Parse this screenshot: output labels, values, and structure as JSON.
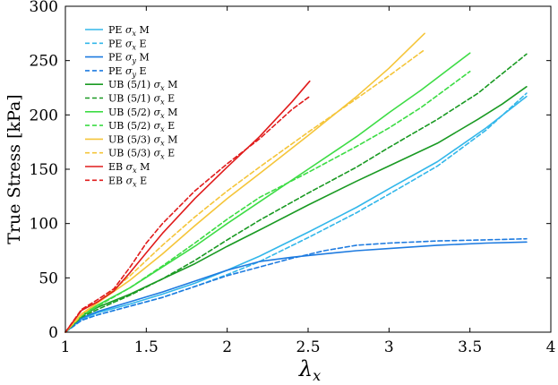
{
  "chart_data": {
    "type": "line",
    "xlabel": "λx",
    "ylabel": "True Stress [kPa]",
    "xlim": [
      1,
      4
    ],
    "ylim": [
      0,
      300
    ],
    "xticks": [
      "1",
      "1.5",
      "2",
      "2.5",
      "3",
      "3.5",
      "4"
    ],
    "yticks": [
      "0",
      "50",
      "100",
      "150",
      "200",
      "250",
      "300"
    ],
    "grid": false,
    "legend": "top-left",
    "series": [
      {
        "name": "PE σx M",
        "color": "#33b7ea",
        "dash": false,
        "x": [
          1,
          1.1,
          1.2,
          1.4,
          1.6,
          1.8,
          2.0,
          2.2,
          2.5,
          2.8,
          3.0,
          3.3,
          3.6,
          3.85
        ],
        "y": [
          0,
          12,
          18,
          26,
          35,
          45,
          57,
          70,
          92,
          115,
          132,
          157,
          188,
          217
        ]
      },
      {
        "name": "PE σx E",
        "color": "#33b7ea",
        "dash": true,
        "x": [
          1,
          1.1,
          1.2,
          1.4,
          1.6,
          1.8,
          2.0,
          2.2,
          2.5,
          2.8,
          3.0,
          3.3,
          3.6,
          3.85
        ],
        "y": [
          0,
          11,
          16,
          24,
          32,
          42,
          53,
          65,
          87,
          110,
          127,
          153,
          186,
          220
        ]
      },
      {
        "name": "PE σy M",
        "color": "#1e7be0",
        "dash": false,
        "x": [
          1,
          1.1,
          1.2,
          1.4,
          1.6,
          1.8,
          2.0,
          2.2,
          2.4,
          2.6,
          2.8,
          3.0,
          3.3,
          3.6,
          3.85
        ],
        "y": [
          0,
          13,
          19,
          28,
          37,
          47,
          57,
          65,
          69,
          72,
          75,
          77,
          80,
          82,
          83
        ]
      },
      {
        "name": "PE σy E",
        "color": "#1e7be0",
        "dash": true,
        "x": [
          1,
          1.1,
          1.2,
          1.4,
          1.6,
          1.8,
          2.0,
          2.2,
          2.4,
          2.6,
          2.8,
          3.0,
          3.3,
          3.6,
          3.85
        ],
        "y": [
          0,
          11,
          16,
          24,
          32,
          42,
          52,
          60,
          68,
          75,
          80,
          82,
          84,
          85,
          86
        ]
      },
      {
        "name": "UB (5/1) σx M",
        "color": "#1a9a23",
        "dash": false,
        "x": [
          1,
          1.1,
          1.2,
          1.4,
          1.6,
          1.8,
          2.0,
          2.2,
          2.5,
          2.8,
          3.0,
          3.3,
          3.55,
          3.7,
          3.85
        ],
        "y": [
          0,
          15,
          23,
          35,
          49,
          63,
          79,
          94,
          117,
          139,
          153,
          174,
          196,
          210,
          226
        ]
      },
      {
        "name": "UB (5/1) σx E",
        "color": "#1a9a23",
        "dash": true,
        "x": [
          1,
          1.1,
          1.2,
          1.4,
          1.6,
          1.8,
          2.0,
          2.2,
          2.5,
          2.8,
          3.0,
          3.3,
          3.55,
          3.7,
          3.85
        ],
        "y": [
          0,
          14,
          21,
          34,
          49,
          66,
          85,
          103,
          128,
          152,
          170,
          196,
          220,
          238,
          256
        ]
      },
      {
        "name": "UB (5/2) σx M",
        "color": "#3ddc45",
        "dash": false,
        "x": [
          1,
          1.1,
          1.2,
          1.4,
          1.6,
          1.8,
          2.0,
          2.2,
          2.5,
          2.8,
          3.0,
          3.2,
          3.5
        ],
        "y": [
          0,
          16,
          25,
          41,
          60,
          79,
          100,
          120,
          150,
          180,
          202,
          223,
          257
        ]
      },
      {
        "name": "UB (5/2) σx E",
        "color": "#3ddc45",
        "dash": true,
        "x": [
          1,
          1.1,
          1.2,
          1.4,
          1.6,
          1.8,
          2.0,
          2.2,
          2.5,
          2.8,
          3.0,
          3.2,
          3.5
        ],
        "y": [
          0,
          15,
          24,
          41,
          61,
          82,
          104,
          124,
          147,
          171,
          188,
          207,
          240
        ]
      },
      {
        "name": "UB (5/3) σx M",
        "color": "#f5c53a",
        "dash": false,
        "x": [
          1,
          1.1,
          1.2,
          1.4,
          1.6,
          1.8,
          2.0,
          2.2,
          2.5,
          2.8,
          3.0,
          3.22
        ],
        "y": [
          0,
          17,
          27,
          48,
          72,
          98,
          123,
          146,
          181,
          217,
          243,
          275
        ]
      },
      {
        "name": "UB (5/3) σx E",
        "color": "#f5c53a",
        "dash": true,
        "x": [
          1,
          1.1,
          1.2,
          1.4,
          1.6,
          1.8,
          2.0,
          2.2,
          2.5,
          2.8,
          3.0,
          3.22
        ],
        "y": [
          0,
          16,
          27,
          52,
          80,
          106,
          130,
          152,
          184,
          215,
          236,
          260
        ]
      },
      {
        "name": "EB σx M",
        "color": "#e01b1b",
        "dash": false,
        "x": [
          1,
          1.1,
          1.2,
          1.3,
          1.4,
          1.5,
          1.6,
          1.8,
          2.0,
          2.2,
          2.4,
          2.51
        ],
        "y": [
          0,
          20,
          28,
          38,
          55,
          73,
          91,
          123,
          152,
          180,
          212,
          231
        ]
      },
      {
        "name": "EB σx E",
        "color": "#e01b1b",
        "dash": true,
        "x": [
          1,
          1.1,
          1.2,
          1.3,
          1.4,
          1.5,
          1.6,
          1.8,
          2.0,
          2.2,
          2.4,
          2.51
        ],
        "y": [
          0,
          21,
          30,
          40,
          60,
          82,
          100,
          130,
          155,
          178,
          205,
          217
        ]
      }
    ]
  }
}
